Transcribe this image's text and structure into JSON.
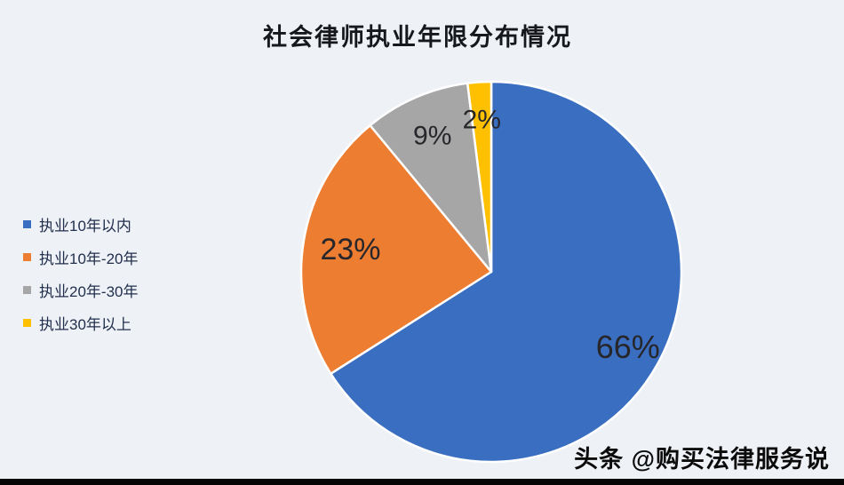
{
  "page": {
    "background_color": "#eef1f6"
  },
  "chart_data": {
    "type": "pie",
    "title": "社会律师执业年限分布情况",
    "categories": [
      "执业10年以内",
      "执业10年-20年",
      "执业20年-30年",
      "执业30年以上"
    ],
    "values": [
      66,
      23,
      9,
      2
    ],
    "value_labels": [
      "66%",
      "23%",
      "9%",
      "2%"
    ],
    "colors": [
      "#3A6EC0",
      "#ED7D31",
      "#A6A6A6",
      "#FFC000"
    ],
    "legend_position": "left",
    "start_angle": "top",
    "direction": "clockwise",
    "slice_border_color": "#ffffff"
  },
  "footer": {
    "watermark": "头条 @购买法律服务说"
  }
}
